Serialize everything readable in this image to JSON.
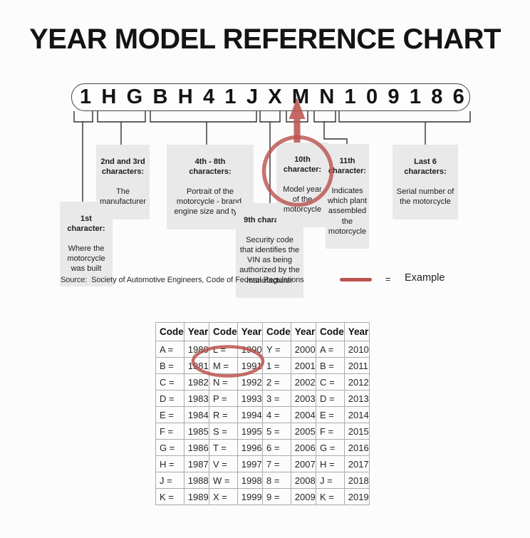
{
  "page": {
    "title": "YEAR MODEL REFERENCE CHART"
  },
  "vin": {
    "value": "1HGBH41JXMN109186"
  },
  "diagram": {
    "highlight_color": "#bb544f",
    "line_color": "#2f2f2f",
    "label_background": "#e9e9e9",
    "labels": [
      {
        "id": "1st",
        "heading": "1st\ncharacter:",
        "body": "Where the\nmotorcycle\nwas built"
      },
      {
        "id": "2nd-3rd",
        "heading": "2nd and 3rd\ncharacters:",
        "body": "The\nmanufacturer"
      },
      {
        "id": "4th-8th",
        "heading": "4th - 8th\ncharacters:",
        "body": "Portrait of the\nmotorcycle - brand,\nengine size and type"
      },
      {
        "id": "9th",
        "heading": "9th character:",
        "body": "Security code\nthat identifies the\nVIN as being\nauthorized by the\nmanufacturer"
      },
      {
        "id": "10th",
        "heading": "10th\ncharacter:",
        "body": "Model year\nof the\nmotorcycle"
      },
      {
        "id": "11th",
        "heading": "11th\ncharacter:",
        "body": "Indicates\nwhich plant\nassembled\nthe\nmotorcycle"
      },
      {
        "id": "last-6",
        "heading": "Last 6\ncharacters:",
        "body": "Serial number of\nthe motorcycle"
      }
    ]
  },
  "source_line": "Source:  Society of Automotive Engineers, Code of Federal Regulations",
  "legend": {
    "equals": "=",
    "label": "Example"
  },
  "table": {
    "headers": [
      "Code",
      "Year",
      "Code",
      "Year",
      "Code",
      "Year",
      "Code",
      "Year"
    ],
    "rows": [
      [
        "A =",
        "1980",
        "L =",
        "1990",
        "Y =",
        "2000",
        "A =",
        "2010"
      ],
      [
        "B =",
        "1981",
        "M =",
        "1991",
        "1 =",
        "2001",
        "B =",
        "2011"
      ],
      [
        "C =",
        "1982",
        "N =",
        "1992",
        "2 =",
        "2002",
        "C =",
        "2012"
      ],
      [
        "D =",
        "1983",
        "P =",
        "1993",
        "3 =",
        "2003",
        "D =",
        "2013"
      ],
      [
        "E =",
        "1984",
        "R =",
        "1994",
        "4 =",
        "2004",
        "E =",
        "2014"
      ],
      [
        "F =",
        "1985",
        "S =",
        "1995",
        "5 =",
        "2005",
        "F =",
        "2015"
      ],
      [
        "G =",
        "1986",
        "T =",
        "1996",
        "6 =",
        "2006",
        "G =",
        "2016"
      ],
      [
        "H =",
        "1987",
        "V =",
        "1997",
        "7 =",
        "2007",
        "H =",
        "2017"
      ],
      [
        "J =",
        "1988",
        "W =",
        "1998",
        "8 =",
        "2008",
        "J =",
        "2018"
      ],
      [
        "K =",
        "1989",
        "X =",
        "1999",
        "9 =",
        "2009",
        "K =",
        "2019"
      ]
    ],
    "highlighted_cell": {
      "code": "M =",
      "year": "1991"
    }
  }
}
